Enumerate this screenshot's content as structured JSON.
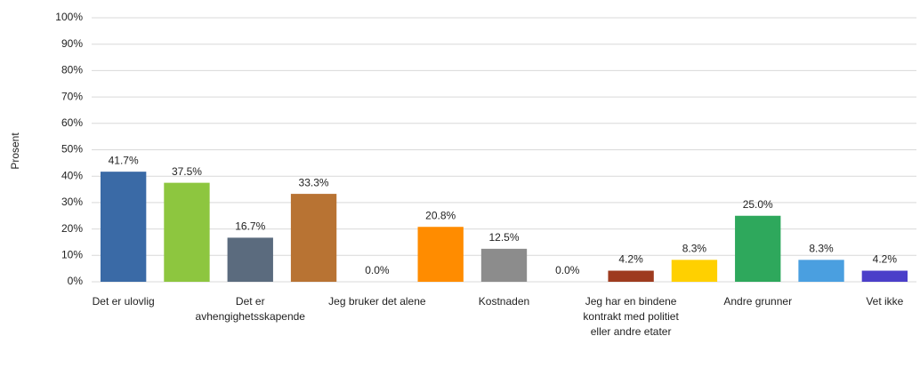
{
  "chart_data": {
    "type": "bar",
    "y_label": "Prosent",
    "categories": [
      "Det er ulovlig",
      null,
      "Det er avhengighetsskapende",
      null,
      "Jeg bruker det alene",
      null,
      "Kostnaden",
      null,
      "Jeg har en bindene kontrakt med politiet eller andre etater",
      null,
      "Andre grunner",
      null,
      "Vet ikke"
    ],
    "values": [
      41.7,
      37.5,
      16.7,
      33.3,
      0.0,
      20.8,
      12.5,
      0.0,
      4.2,
      8.3,
      25.0,
      8.3,
      4.2
    ],
    "value_labels": [
      "41.7%",
      "37.5%",
      "16.7%",
      "33.3%",
      "0.0%",
      "20.8%",
      "12.5%",
      "0.0%",
      "4.2%",
      "8.3%",
      "25.0%",
      "8.3%",
      "4.2%"
    ],
    "colors": [
      "#3a6aa6",
      "#8dc63f",
      "#5b6b7e",
      "#b87333",
      "#4472c4",
      "#ff8c00",
      "#8c8c8c",
      "#7f7f7f",
      "#9e3b1f",
      "#ffd000",
      "#2ea85c",
      "#4a9fe0",
      "#4b3fc9"
    ],
    "ylim": [
      0,
      100
    ],
    "yticks": [
      {
        "value": 0,
        "label": "0%"
      },
      {
        "value": 10,
        "label": "10%"
      },
      {
        "value": 20,
        "label": "20%"
      },
      {
        "value": 30,
        "label": "30%"
      },
      {
        "value": 40,
        "label": "40%"
      },
      {
        "value": 50,
        "label": "50%"
      },
      {
        "value": 60,
        "label": "60%"
      },
      {
        "value": 70,
        "label": "70%"
      },
      {
        "value": 80,
        "label": "80%"
      },
      {
        "value": 90,
        "label": "90%"
      },
      {
        "value": 100,
        "label": "100%"
      }
    ],
    "grid": true
  }
}
